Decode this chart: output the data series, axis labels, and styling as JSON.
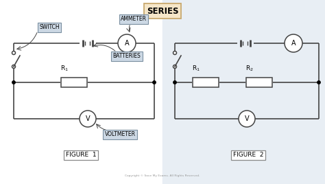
{
  "title": "SERIES",
  "title_bg": "#f5e6c8",
  "title_border": "#c8a96e",
  "fig_bg": "#f0f4f8",
  "circuit_color": "#444444",
  "label_bg": "#ccd8e4",
  "label_border": "#7a8fa0",
  "figure1_label": "FIGURE  1",
  "figure2_label": "FIGURE  2",
  "labels": {
    "switch": "SWITCH",
    "ammeter": "AMMETER",
    "batteries": "BATTERIES",
    "voltmeter": "VOLTMETER"
  },
  "copyright": "Copyright © Save My Exams. All Rights Reserved."
}
